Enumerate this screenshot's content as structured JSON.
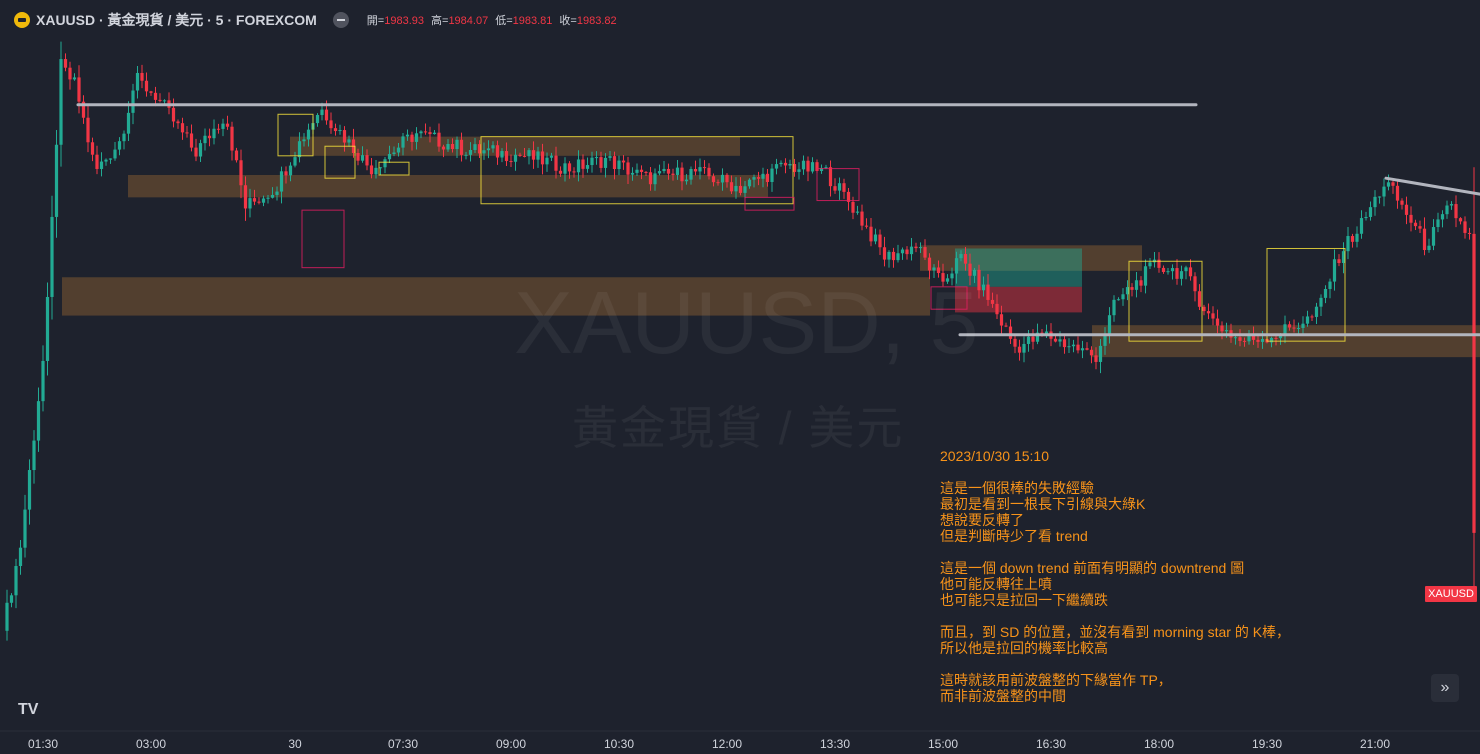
{
  "header": {
    "symbol_title": "XAUUSD · 黃金現貨 / 美元 · 5 · FOREXCOM",
    "ohlc": [
      {
        "label": "開=",
        "value": "1983.93"
      },
      {
        "label": "高=",
        "value": "1984.07"
      },
      {
        "label": "低=",
        "value": "1983.81"
      },
      {
        "label": "收=",
        "value": "1983.82"
      }
    ]
  },
  "watermark": {
    "symbol": "XAUUSD, 5",
    "name": "黃金現貨 / 美元"
  },
  "annotation": {
    "date": "2023/10/30 15:10",
    "paragraphs": [
      [
        "這是一個很棒的失敗經驗",
        "最初是看到一根長下引線與大綠K",
        "想說要反轉了",
        "但是判斷時少了看 trend"
      ],
      [
        "這是一個 down trend 前面有明顯的 downtrend 圖",
        "他可能反轉往上噴",
        "也可能只是拉回一下繼續跌"
      ],
      [
        "而且，到 SD 的位置，並沒有看到 morning star 的 K棒，",
        "所以他是拉回的機率比較高"
      ],
      [
        "這時就該用前波盤整的下緣當作 TP，",
        "而非前波盤整的中間"
      ]
    ]
  },
  "price_badge": "XAUUSD",
  "logo": "TV",
  "scroll_icon": "double-chevron-right-icon",
  "colors": {
    "up": "#22ab94",
    "down": "#f23645",
    "zone": "#5c4430",
    "box": "#ffeb3b",
    "pink_box": "#e91e63",
    "line": "#b2b5be",
    "annotation": "#f7931a"
  },
  "chart_data": {
    "type": "candlestick",
    "symbol": "XAUUSD",
    "timeframe": "5",
    "x_tick_labels": [
      "01:30",
      "03:00",
      "30",
      "07:30",
      "09:00",
      "10:30",
      "12:00",
      "13:30",
      "15:00",
      "16:30",
      "18:00",
      "19:30",
      "21:00"
    ],
    "last_bar": {
      "open": 1983.93,
      "high": 1984.07,
      "low": 1983.81,
      "close": 1983.82
    },
    "ylim": [
      1983.2,
      1985.4
    ],
    "anchors": [
      {
        "t": 0,
        "p": 1983.41
      },
      {
        "t": 25,
        "p": 1983.78
      },
      {
        "t": 50,
        "p": 1984.42
      },
      {
        "t": 65,
        "p": 1985.28
      },
      {
        "t": 80,
        "p": 1985.22
      },
      {
        "t": 100,
        "p": 1984.95
      },
      {
        "t": 125,
        "p": 1985.05
      },
      {
        "t": 140,
        "p": 1985.24
      },
      {
        "t": 160,
        "p": 1985.19
      },
      {
        "t": 200,
        "p": 1985.01
      },
      {
        "t": 230,
        "p": 1985.13
      },
      {
        "t": 250,
        "p": 1984.84
      },
      {
        "t": 280,
        "p": 1984.9
      },
      {
        "t": 300,
        "p": 1985.02
      },
      {
        "t": 325,
        "p": 1985.15
      },
      {
        "t": 375,
        "p": 1984.96
      },
      {
        "t": 420,
        "p": 1985.07
      },
      {
        "t": 470,
        "p": 1985.02
      },
      {
        "t": 530,
        "p": 1985.0
      },
      {
        "t": 575,
        "p": 1984.96
      },
      {
        "t": 610,
        "p": 1984.99
      },
      {
        "t": 650,
        "p": 1984.93
      },
      {
        "t": 700,
        "p": 1984.95
      },
      {
        "t": 745,
        "p": 1984.9
      },
      {
        "t": 790,
        "p": 1984.97
      },
      {
        "t": 830,
        "p": 1984.95
      },
      {
        "t": 860,
        "p": 1984.83
      },
      {
        "t": 890,
        "p": 1984.68
      },
      {
        "t": 920,
        "p": 1984.72
      },
      {
        "t": 945,
        "p": 1984.6
      },
      {
        "t": 965,
        "p": 1984.68
      },
      {
        "t": 990,
        "p": 1984.57
      },
      {
        "t": 1020,
        "p": 1984.4
      },
      {
        "t": 1050,
        "p": 1984.44
      },
      {
        "t": 1080,
        "p": 1984.4
      },
      {
        "t": 1100,
        "p": 1984.37
      },
      {
        "t": 1120,
        "p": 1984.54
      },
      {
        "t": 1160,
        "p": 1984.66
      },
      {
        "t": 1190,
        "p": 1984.63
      },
      {
        "t": 1215,
        "p": 1984.49
      },
      {
        "t": 1245,
        "p": 1984.42
      },
      {
        "t": 1280,
        "p": 1984.44
      },
      {
        "t": 1320,
        "p": 1984.5
      },
      {
        "t": 1345,
        "p": 1984.7
      },
      {
        "t": 1365,
        "p": 1984.78
      },
      {
        "t": 1390,
        "p": 1984.92
      },
      {
        "t": 1415,
        "p": 1984.8
      },
      {
        "t": 1430,
        "p": 1984.72
      },
      {
        "t": 1455,
        "p": 1984.84
      },
      {
        "t": 1475,
        "p": 1984.74
      }
    ],
    "zones": [
      {
        "t1": 290,
        "t2": 740,
        "p1": 1985.06,
        "p2": 1985.0
      },
      {
        "t1": 128,
        "t2": 768,
        "p1": 1984.94,
        "p2": 1984.87
      },
      {
        "t1": 62,
        "t2": 930,
        "p1": 1984.62,
        "p2": 1984.5
      },
      {
        "t1": 920,
        "t2": 1142,
        "p1": 1984.72,
        "p2": 1984.64
      },
      {
        "t1": 1092,
        "t2": 1480,
        "p1": 1984.47,
        "p2": 1984.37
      }
    ],
    "yellow_boxes": [
      {
        "t1": 278,
        "t2": 313,
        "p1": 1985.13,
        "p2": 1985.0
      },
      {
        "t1": 325,
        "t2": 355,
        "p1": 1985.03,
        "p2": 1984.93
      },
      {
        "t1": 379,
        "t2": 409,
        "p1": 1984.98,
        "p2": 1984.94
      },
      {
        "t1": 481,
        "t2": 793,
        "p1": 1985.06,
        "p2": 1984.85
      },
      {
        "t1": 1129,
        "t2": 1202,
        "p1": 1984.67,
        "p2": 1984.42
      },
      {
        "t1": 1267,
        "t2": 1345,
        "p1": 1984.71,
        "p2": 1984.42
      }
    ],
    "pink_boxes": [
      {
        "t1": 302,
        "t2": 344,
        "p1": 1984.83,
        "p2": 1984.65
      },
      {
        "t1": 745,
        "t2": 794,
        "p1": 1984.87,
        "p2": 1984.83
      },
      {
        "t1": 817,
        "t2": 859,
        "p1": 1984.96,
        "p2": 1984.86
      },
      {
        "t1": 931,
        "t2": 967,
        "p1": 1984.59,
        "p2": 1984.52
      }
    ],
    "position_long": {
      "t1": 955,
      "t2": 1082,
      "entry": 1984.59,
      "target": 1984.71,
      "stop": 1984.51
    },
    "lines": [
      {
        "t1": 78,
        "p1": 1985.16,
        "t2": 1196,
        "p2": 1985.16
      },
      {
        "t1": 960,
        "p1": 1984.44,
        "t2": 1480,
        "p2": 1984.44
      },
      {
        "t1": 1386,
        "p1": 1984.93,
        "t2": 1480,
        "p2": 1984.88
      }
    ]
  }
}
